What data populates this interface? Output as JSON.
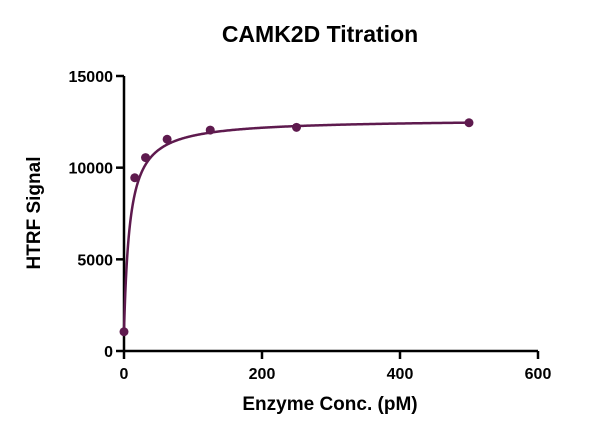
{
  "chart_data": {
    "type": "scatter",
    "title": "CAMK2D Titration",
    "xlabel": "Enzyme Conc. (pM)",
    "ylabel": "HTRF Signal",
    "xlim": [
      0,
      600
    ],
    "ylim": [
      0,
      15000
    ],
    "x_ticks": [
      0,
      200,
      400,
      600
    ],
    "y_ticks": [
      0,
      5000,
      10000,
      15000
    ],
    "x_tick_labels": [
      "0",
      "200",
      "400",
      "600"
    ],
    "y_tick_labels": [
      "0",
      "5000",
      "10000",
      "15000"
    ],
    "grid": false,
    "legend": "none",
    "series": [
      {
        "x": [
          0,
          15.6,
          31.25,
          62.5,
          125,
          250,
          500
        ],
        "y": [
          1050,
          9450,
          10550,
          11550,
          12050,
          12200,
          12450
        ],
        "color": "#5e1a4e",
        "fit_curve": true
      }
    ]
  }
}
